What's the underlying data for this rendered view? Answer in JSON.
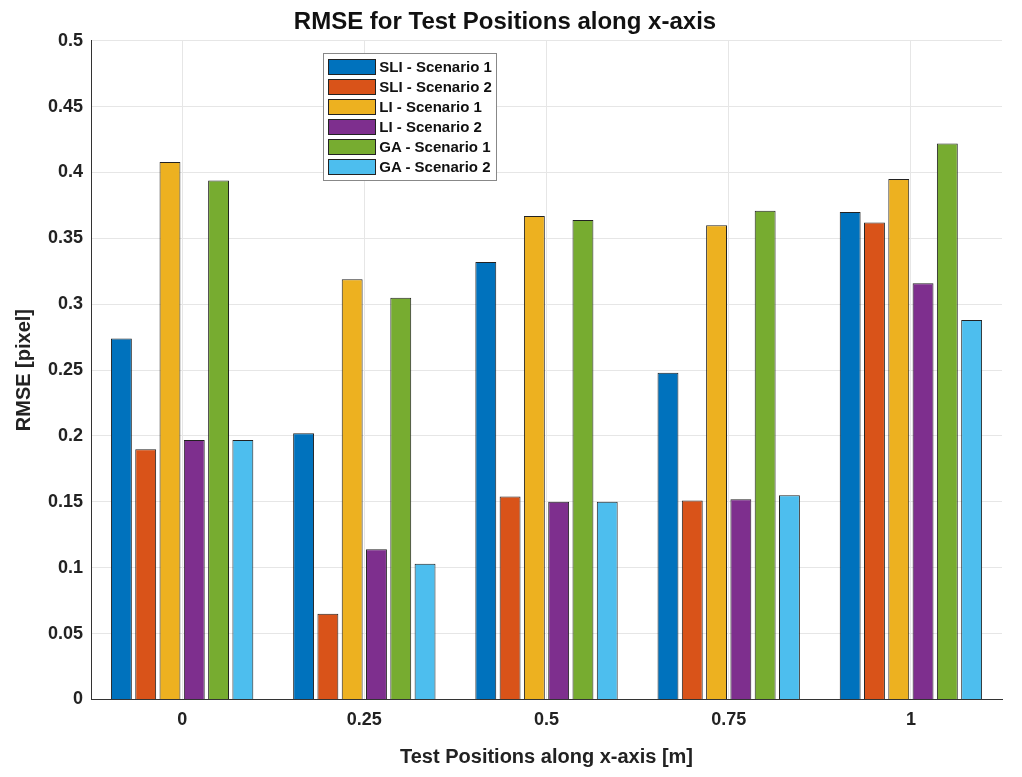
{
  "chart_data": {
    "type": "bar",
    "title": "RMSE for Test Positions along x-axis",
    "xlabel": "Test Positions along x-axis [m]",
    "ylabel": "RMSE [pixel]",
    "categories": [
      "0",
      "0.25",
      "0.5",
      "0.75",
      "1"
    ],
    "series": [
      {
        "name": "SLI - Scenario 1",
        "color": "#0072bd",
        "values": [
          0.274,
          0.202,
          0.332,
          0.248,
          0.37
        ]
      },
      {
        "name": "SLI - Scenario 2",
        "color": "#d95319",
        "values": [
          0.19,
          0.065,
          0.154,
          0.151,
          0.362
        ]
      },
      {
        "name": "LI - Scenario 1",
        "color": "#edb120",
        "values": [
          0.408,
          0.319,
          0.367,
          0.36,
          0.395
        ]
      },
      {
        "name": "LI - Scenario 2",
        "color": "#7e2f8e",
        "values": [
          0.197,
          0.114,
          0.15,
          0.152,
          0.316
        ]
      },
      {
        "name": "GA - Scenario 1",
        "color": "#77ac30",
        "values": [
          0.394,
          0.305,
          0.364,
          0.371,
          0.422
        ]
      },
      {
        "name": "GA - Scenario 2",
        "color": "#4dbeee",
        "values": [
          0.197,
          0.103,
          0.15,
          0.155,
          0.288
        ]
      }
    ],
    "ylim": [
      0,
      0.5
    ],
    "yticks": [
      0,
      0.05,
      0.1,
      0.15,
      0.2,
      0.25,
      0.3,
      0.35,
      0.4,
      0.45,
      0.5
    ],
    "grid": true,
    "legend": "top left"
  }
}
